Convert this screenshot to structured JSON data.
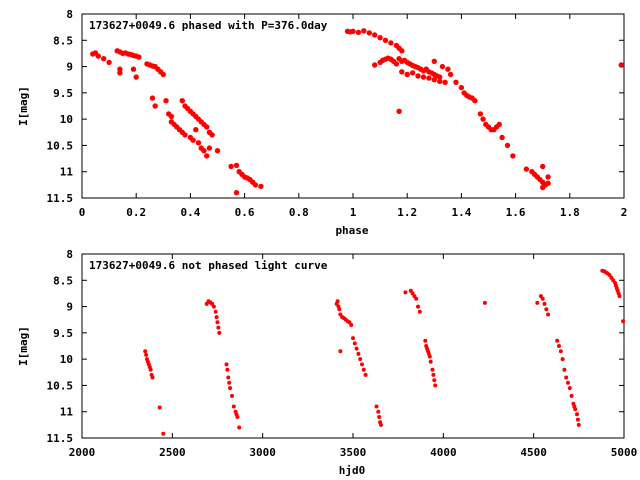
{
  "chart_data": [
    {
      "type": "scatter",
      "title": "173627+0049.6 phased with P=376.0day",
      "xlabel": "phase",
      "ylabel": "I[mag]",
      "xlim": [
        0,
        2
      ],
      "ylim": [
        8,
        11.5
      ],
      "y_inverted": true,
      "x_ticks": [
        0,
        0.2,
        0.4,
        0.6,
        0.8,
        1,
        1.2,
        1.4,
        1.6,
        1.8,
        2
      ],
      "x_tick_labels": [
        "0",
        "0.2",
        "0.4",
        "0.6",
        "0.8",
        "1",
        "1.2",
        "1.4",
        "1.6",
        "1.8",
        "2"
      ],
      "y_ticks": [
        8,
        8.5,
        9,
        9.5,
        10,
        10.5,
        11,
        11.5
      ],
      "y_tick_labels": [
        "8",
        "8.5",
        "9",
        "9.5",
        "10",
        "10.5",
        "11",
        "11.5"
      ],
      "grid": false,
      "marker_color": "#ff0000",
      "series": [
        {
          "points": [
            [
              0.04,
              8.76
            ],
            [
              0.05,
              8.74
            ],
            [
              0.06,
              8.8
            ],
            [
              0.08,
              8.85
            ],
            [
              0.1,
              8.92
            ],
            [
              0.13,
              8.7
            ],
            [
              0.14,
              8.72
            ],
            [
              0.15,
              8.75
            ],
            [
              0.16,
              8.74
            ],
            [
              0.17,
              8.76
            ],
            [
              0.18,
              8.77
            ],
            [
              0.19,
              8.79
            ],
            [
              0.2,
              8.8
            ],
            [
              0.21,
              8.82
            ],
            [
              0.14,
              9.12
            ],
            [
              0.14,
              9.05
            ],
            [
              0.19,
              9.05
            ],
            [
              0.2,
              9.2
            ],
            [
              0.24,
              8.95
            ],
            [
              0.25,
              8.97
            ],
            [
              0.26,
              8.99
            ],
            [
              0.27,
              9.0
            ],
            [
              0.28,
              9.05
            ],
            [
              0.29,
              9.1
            ],
            [
              0.3,
              9.15
            ],
            [
              0.26,
              9.6
            ],
            [
              0.27,
              9.75
            ],
            [
              0.31,
              9.65
            ],
            [
              0.32,
              9.9
            ],
            [
              0.33,
              9.95
            ],
            [
              0.33,
              10.05
            ],
            [
              0.34,
              10.1
            ],
            [
              0.35,
              10.15
            ],
            [
              0.36,
              10.2
            ],
            [
              0.37,
              10.25
            ],
            [
              0.38,
              10.3
            ],
            [
              0.4,
              10.35
            ],
            [
              0.41,
              10.4
            ],
            [
              0.43,
              10.45
            ],
            [
              0.44,
              10.55
            ],
            [
              0.45,
              10.6
            ],
            [
              0.46,
              10.7
            ],
            [
              0.37,
              9.65
            ],
            [
              0.38,
              9.75
            ],
            [
              0.39,
              9.8
            ],
            [
              0.4,
              9.85
            ],
            [
              0.41,
              9.9
            ],
            [
              0.42,
              9.95
            ],
            [
              0.43,
              10.0
            ],
            [
              0.44,
              10.05
            ],
            [
              0.45,
              10.1
            ],
            [
              0.46,
              10.15
            ],
            [
              0.47,
              10.25
            ],
            [
              0.48,
              10.3
            ],
            [
              0.42,
              10.2
            ],
            [
              0.47,
              10.55
            ],
            [
              0.5,
              10.6
            ],
            [
              0.55,
              10.9
            ],
            [
              0.57,
              10.88
            ],
            [
              0.58,
              11.0
            ],
            [
              0.59,
              11.05
            ],
            [
              0.6,
              11.1
            ],
            [
              0.61,
              11.12
            ],
            [
              0.62,
              11.15
            ],
            [
              0.63,
              11.2
            ],
            [
              0.64,
              11.25
            ],
            [
              0.66,
              11.28
            ],
            [
              0.57,
              11.4
            ],
            [
              0.98,
              8.33
            ],
            [
              0.99,
              8.34
            ],
            [
              1.0,
              8.33
            ],
            [
              1.02,
              8.35
            ],
            [
              1.04,
              8.32
            ],
            [
              1.06,
              8.36
            ],
            [
              1.08,
              8.4
            ],
            [
              1.1,
              8.45
            ],
            [
              1.12,
              8.5
            ],
            [
              1.14,
              8.55
            ],
            [
              1.16,
              8.6
            ],
            [
              1.17,
              8.65
            ],
            [
              1.18,
              8.7
            ],
            [
              1.08,
              8.97
            ],
            [
              1.1,
              8.92
            ],
            [
              1.11,
              8.88
            ],
            [
              1.12,
              8.86
            ],
            [
              1.13,
              8.84
            ],
            [
              1.14,
              8.86
            ],
            [
              1.15,
              8.9
            ],
            [
              1.16,
              8.95
            ],
            [
              1.17,
              8.85
            ],
            [
              1.18,
              8.9
            ],
            [
              1.19,
              8.88
            ],
            [
              1.2,
              8.92
            ],
            [
              1.21,
              8.95
            ],
            [
              1.22,
              8.98
            ],
            [
              1.23,
              9.0
            ],
            [
              1.24,
              9.02
            ],
            [
              1.25,
              9.05
            ],
            [
              1.26,
              9.08
            ],
            [
              1.27,
              9.05
            ],
            [
              1.28,
              9.1
            ],
            [
              1.29,
              9.12
            ],
            [
              1.3,
              9.15
            ],
            [
              1.31,
              9.18
            ],
            [
              1.32,
              9.2
            ],
            [
              1.18,
              9.1
            ],
            [
              1.2,
              9.15
            ],
            [
              1.22,
              9.12
            ],
            [
              1.24,
              9.18
            ],
            [
              1.26,
              9.2
            ],
            [
              1.28,
              9.22
            ],
            [
              1.3,
              9.25
            ],
            [
              1.32,
              9.28
            ],
            [
              1.34,
              9.3
            ],
            [
              1.3,
              8.9
            ],
            [
              1.33,
              9.0
            ],
            [
              1.35,
              9.05
            ],
            [
              1.36,
              9.15
            ],
            [
              1.38,
              9.3
            ],
            [
              1.4,
              9.4
            ],
            [
              1.41,
              9.5
            ],
            [
              1.42,
              9.55
            ],
            [
              1.43,
              9.58
            ],
            [
              1.44,
              9.6
            ],
            [
              1.45,
              9.65
            ],
            [
              1.47,
              9.9
            ],
            [
              1.48,
              10.0
            ],
            [
              1.49,
              10.1
            ],
            [
              1.5,
              10.15
            ],
            [
              1.51,
              10.2
            ],
            [
              1.52,
              10.2
            ],
            [
              1.53,
              10.15
            ],
            [
              1.54,
              10.1
            ],
            [
              1.55,
              10.35
            ],
            [
              1.57,
              10.5
            ],
            [
              1.59,
              10.7
            ],
            [
              1.17,
              9.85
            ],
            [
              1.64,
              10.95
            ],
            [
              1.66,
              11.0
            ],
            [
              1.67,
              11.05
            ],
            [
              1.68,
              11.1
            ],
            [
              1.69,
              11.15
            ],
            [
              1.7,
              11.2
            ],
            [
              1.71,
              11.25
            ],
            [
              1.72,
              11.22
            ],
            [
              1.7,
              10.9
            ],
            [
              1.72,
              11.1
            ],
            [
              1.7,
              11.3
            ],
            [
              1.99,
              8.97
            ]
          ]
        }
      ]
    },
    {
      "type": "scatter",
      "title": "173627+0049.6 not phased light curve",
      "xlabel": "hjd0",
      "ylabel": "I[mag]",
      "xlim": [
        2000,
        5000
      ],
      "ylim": [
        8,
        11.5
      ],
      "y_inverted": true,
      "x_ticks": [
        2000,
        2500,
        3000,
        3500,
        4000,
        4500,
        5000
      ],
      "x_tick_labels": [
        "2000",
        "2500",
        "3000",
        "3500",
        "4000",
        "4500",
        "5000"
      ],
      "y_ticks": [
        8,
        8.5,
        9,
        9.5,
        10,
        10.5,
        11,
        11.5
      ],
      "y_tick_labels": [
        "8",
        "8.5",
        "9",
        "9.5",
        "10",
        "10.5",
        "11",
        "11.5"
      ],
      "grid": false,
      "marker_color": "#ff0000",
      "series": [
        {
          "points": [
            [
              2350,
              9.85
            ],
            [
              2355,
              9.92
            ],
            [
              2360,
              10.0
            ],
            [
              2365,
              10.05
            ],
            [
              2370,
              10.1
            ],
            [
              2375,
              10.15
            ],
            [
              2380,
              10.2
            ],
            [
              2385,
              10.3
            ],
            [
              2390,
              10.35
            ],
            [
              2430,
              10.92
            ],
            [
              2450,
              11.42
            ],
            [
              2690,
              8.95
            ],
            [
              2700,
              8.9
            ],
            [
              2710,
              8.92
            ],
            [
              2720,
              8.95
            ],
            [
              2730,
              9.0
            ],
            [
              2740,
              9.1
            ],
            [
              2745,
              9.2
            ],
            [
              2750,
              9.3
            ],
            [
              2755,
              9.4
            ],
            [
              2760,
              9.5
            ],
            [
              2800,
              10.1
            ],
            [
              2805,
              10.2
            ],
            [
              2810,
              10.35
            ],
            [
              2815,
              10.45
            ],
            [
              2820,
              10.55
            ],
            [
              2830,
              10.7
            ],
            [
              2840,
              10.9
            ],
            [
              2850,
              11.0
            ],
            [
              2855,
              11.05
            ],
            [
              2860,
              11.1
            ],
            [
              2870,
              11.3
            ],
            [
              3410,
              8.95
            ],
            [
              3415,
              8.9
            ],
            [
              3420,
              9.0
            ],
            [
              3425,
              9.05
            ],
            [
              3430,
              9.15
            ],
            [
              3440,
              9.2
            ],
            [
              3450,
              9.22
            ],
            [
              3460,
              9.25
            ],
            [
              3470,
              9.28
            ],
            [
              3480,
              9.3
            ],
            [
              3490,
              9.35
            ],
            [
              3430,
              9.85
            ],
            [
              3500,
              9.6
            ],
            [
              3510,
              9.7
            ],
            [
              3520,
              9.8
            ],
            [
              3530,
              9.9
            ],
            [
              3540,
              10.0
            ],
            [
              3550,
              10.1
            ],
            [
              3560,
              10.2
            ],
            [
              3570,
              10.3
            ],
            [
              3630,
              10.9
            ],
            [
              3640,
              11.0
            ],
            [
              3645,
              11.1
            ],
            [
              3650,
              11.2
            ],
            [
              3655,
              11.25
            ],
            [
              3790,
              8.73
            ],
            [
              3820,
              8.7
            ],
            [
              3830,
              8.75
            ],
            [
              3840,
              8.8
            ],
            [
              3850,
              8.85
            ],
            [
              3860,
              9.0
            ],
            [
              3870,
              9.1
            ],
            [
              3900,
              9.65
            ],
            [
              3905,
              9.75
            ],
            [
              3910,
              9.8
            ],
            [
              3915,
              9.85
            ],
            [
              3920,
              9.9
            ],
            [
              3925,
              9.95
            ],
            [
              3930,
              10.05
            ],
            [
              3940,
              10.2
            ],
            [
              3945,
              10.3
            ],
            [
              3950,
              10.4
            ],
            [
              3955,
              10.5
            ],
            [
              4230,
              8.93
            ],
            [
              4520,
              8.93
            ],
            [
              4540,
              8.8
            ],
            [
              4550,
              8.85
            ],
            [
              4560,
              8.95
            ],
            [
              4570,
              9.05
            ],
            [
              4580,
              9.15
            ],
            [
              4630,
              9.65
            ],
            [
              4640,
              9.75
            ],
            [
              4650,
              9.85
            ],
            [
              4660,
              10.0
            ],
            [
              4670,
              10.2
            ],
            [
              4680,
              10.35
            ],
            [
              4690,
              10.45
            ],
            [
              4700,
              10.55
            ],
            [
              4710,
              10.7
            ],
            [
              4720,
              10.85
            ],
            [
              4730,
              10.95
            ],
            [
              4740,
              11.05
            ],
            [
              4745,
              11.15
            ],
            [
              4750,
              11.25
            ],
            [
              4725,
              10.9
            ],
            [
              4880,
              8.32
            ],
            [
              4890,
              8.33
            ],
            [
              4900,
              8.35
            ],
            [
              4910,
              8.37
            ],
            [
              4920,
              8.4
            ],
            [
              4930,
              8.45
            ],
            [
              4940,
              8.5
            ],
            [
              4950,
              8.55
            ],
            [
              4955,
              8.6
            ],
            [
              4960,
              8.65
            ],
            [
              4965,
              8.7
            ],
            [
              4970,
              8.75
            ],
            [
              4975,
              8.8
            ],
            [
              4995,
              9.28
            ]
          ]
        }
      ]
    }
  ]
}
